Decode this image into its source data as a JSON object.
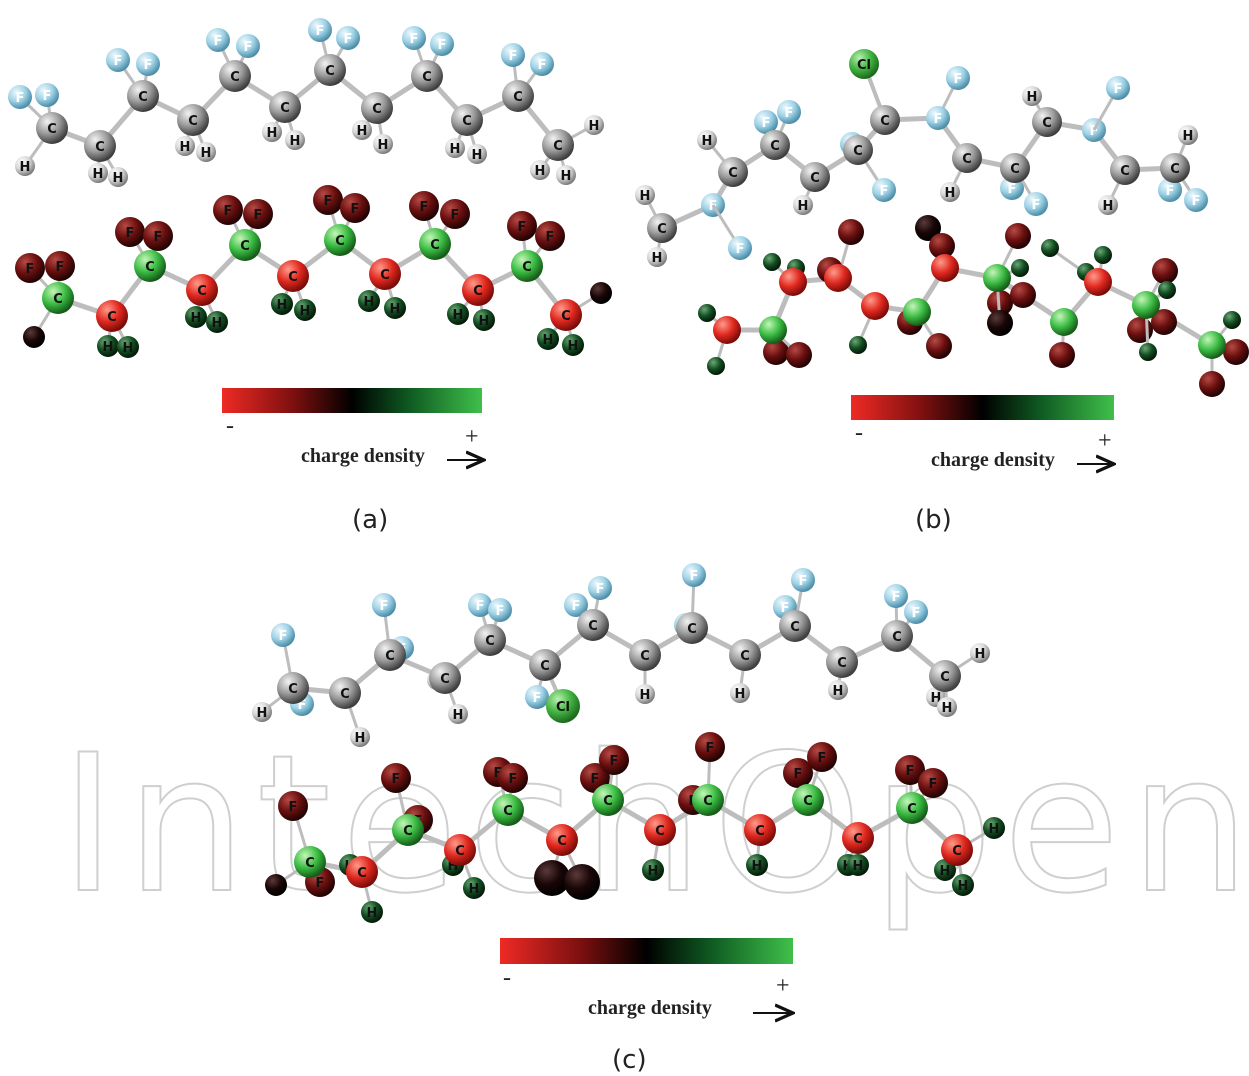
{
  "panels": [
    {
      "caption": "(a)",
      "colorbar": {
        "minus": "-",
        "plus": "+",
        "label": "charge density"
      }
    },
    {
      "caption": "(b)",
      "colorbar": {
        "minus": "-",
        "plus": "+",
        "label": "charge density"
      }
    },
    {
      "caption": "(c)",
      "colorbar": {
        "minus": "-",
        "plus": "+",
        "label": "charge density"
      }
    }
  ],
  "watermark": "IntechOpen",
  "atom_labels": {
    "carbon": "C",
    "fluorine": "F",
    "hydrogen": "H",
    "chlorine": "Cl"
  },
  "colors": {
    "scale": [
      "#ef2a24",
      "#7a0f0f",
      "#000000",
      "#0f5a22",
      "#3fc04a"
    ],
    "carbon_gray": "#9a9a9a",
    "fluorine_blue": "#a9d8ea",
    "hydrogen_white": "#dcdcdc",
    "chlorine_green": "#4cb848"
  }
}
